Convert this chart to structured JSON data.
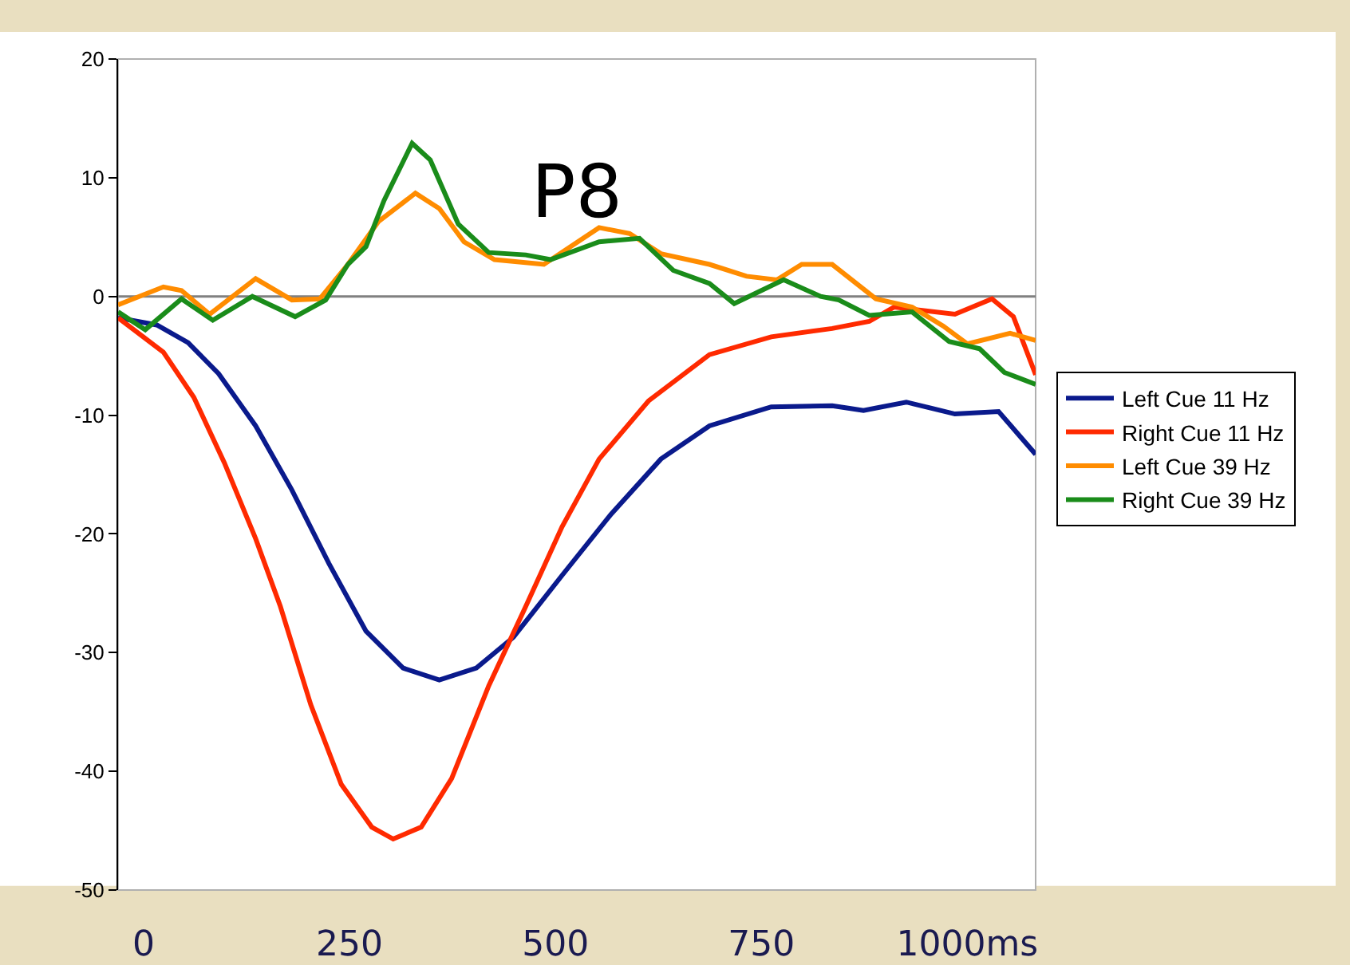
{
  "chart_data": {
    "type": "line",
    "title": "P8",
    "xlim": [
      -31,
      1083
    ],
    "ylim": [
      -50,
      20
    ],
    "xticks": [
      0,
      250,
      500,
      750,
      {
        "value": 1000,
        "label": "1000ms"
      }
    ],
    "yticks": [
      -50,
      -40,
      -30,
      -20,
      -10,
      0,
      10,
      20
    ],
    "grid": false,
    "legend": "right",
    "marker": "none",
    "line_style": "solid",
    "ref_lines": [
      {
        "axis": "y",
        "value": 0,
        "color": "#808080"
      }
    ],
    "series": [
      {
        "name": "Left Cue 11 Hz",
        "color": "#0a1a8c",
        "x": [
          -31,
          16,
          54,
          91,
          136,
          180,
          225,
          270,
          315,
          359,
          404,
          449,
          508,
          568,
          628,
          687,
          762,
          836,
          874,
          926,
          985,
          1038,
          1083
        ],
        "values": [
          -1.8,
          -2.4,
          -3.9,
          -6.5,
          -10.9,
          -16.3,
          -22.5,
          -28.2,
          -31.3,
          -32.3,
          -31.3,
          -28.7,
          -23.5,
          -18.3,
          -13.7,
          -10.9,
          -9.3,
          -9.2,
          -9.6,
          -8.9,
          -9.9,
          -9.7,
          -13.3
        ]
      },
      {
        "name": "Right Cue 11 Hz",
        "color": "#ff2a00",
        "x": [
          -31,
          24,
          61,
          98,
          136,
          166,
          203,
          240,
          277,
          303,
          337,
          374,
          419,
          464,
          508,
          553,
          613,
          687,
          762,
          836,
          881,
          911,
          985,
          1030,
          1056,
          1083
        ],
        "values": [
          -1.8,
          -4.7,
          -8.5,
          -14.0,
          -20.4,
          -26.1,
          -34.4,
          -41.1,
          -44.7,
          -45.7,
          -44.7,
          -40.6,
          -32.8,
          -26.1,
          -19.4,
          -13.7,
          -8.8,
          -4.9,
          -3.4,
          -2.7,
          -2.1,
          -0.9,
          -1.5,
          -0.2,
          -1.7,
          -6.6
        ]
      },
      {
        "name": "Left Cue 39 Hz",
        "color": "#ff8c00",
        "x": [
          -31,
          24,
          46,
          80,
          136,
          180,
          214,
          248,
          285,
          330,
          359,
          389,
          426,
          486,
          553,
          590,
          628,
          687,
          732,
          769,
          799,
          836,
          889,
          933,
          971,
          1000,
          1052,
          1083
        ],
        "values": [
          -0.7,
          0.8,
          0.5,
          -1.5,
          1.5,
          -0.3,
          -0.2,
          2.7,
          6.3,
          8.7,
          7.4,
          4.6,
          3.1,
          2.7,
          5.8,
          5.3,
          3.6,
          2.7,
          1.7,
          1.4,
          2.7,
          2.7,
          -0.2,
          -0.9,
          -2.5,
          -4.0,
          -3.1,
          -3.7
        ]
      },
      {
        "name": "Right Cue 39 Hz",
        "color": "#1a8c1a",
        "x": [
          -31,
          2,
          46,
          84,
          132,
          184,
          221,
          248,
          270,
          292,
          326,
          348,
          382,
          419,
          464,
          494,
          553,
          602,
          643,
          687,
          717,
          747,
          777,
          822,
          844,
          881,
          933,
          978,
          1015,
          1045,
          1083
        ],
        "values": [
          -1.3,
          -2.8,
          -0.2,
          -2.0,
          0,
          -1.7,
          -0.3,
          2.7,
          4.2,
          8.1,
          12.9,
          11.5,
          6.1,
          3.7,
          3.5,
          3.1,
          4.6,
          4.9,
          2.2,
          1.1,
          -0.6,
          0.4,
          1.4,
          0,
          -0.3,
          -1.6,
          -1.3,
          -3.8,
          -4.4,
          -6.4,
          -7.4
        ]
      }
    ]
  }
}
